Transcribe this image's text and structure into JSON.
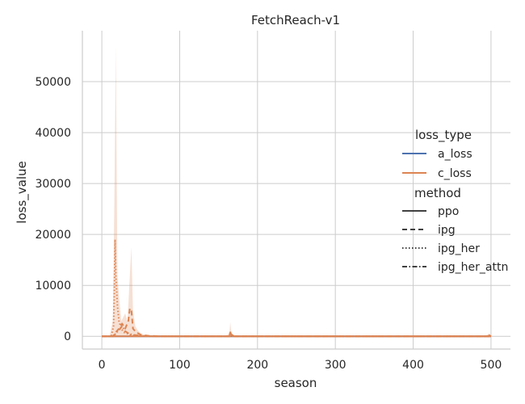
{
  "chart_data": {
    "type": "line",
    "title": "FetchReach-v1",
    "xlabel": "season",
    "ylabel": "loss_value",
    "xlim": [
      -25,
      525
    ],
    "ylim": [
      -2500,
      60000
    ],
    "xticks": [
      0,
      100,
      200,
      300,
      400,
      500
    ],
    "yticks": [
      0,
      10000,
      20000,
      30000,
      40000,
      50000
    ],
    "grid": true,
    "legend_position": "right",
    "legend": {
      "hue_title": "loss_type",
      "hue_entries": [
        {
          "label": "a_loss",
          "color": "#4c72b0"
        },
        {
          "label": "c_loss",
          "color": "#dd8452"
        }
      ],
      "style_title": "method",
      "style_entries": [
        {
          "label": "ppo",
          "dash": "solid"
        },
        {
          "label": "ipg",
          "dash": "dashed"
        },
        {
          "label": "ipg_her",
          "dash": "dotted"
        },
        {
          "label": "ipg_her_attn",
          "dash": "dashdot"
        }
      ]
    },
    "band": {
      "series": "c_loss confidence interval",
      "x": [
        0,
        10,
        14,
        16,
        18,
        20,
        22,
        25,
        30,
        33,
        36,
        38,
        40,
        43,
        46,
        50,
        55,
        60,
        70,
        80,
        100,
        160,
        164,
        165,
        166,
        168,
        172,
        180,
        250,
        350,
        450,
        490,
        495,
        498,
        500
      ],
      "upper": [
        0,
        0,
        3000,
        25000,
        57000,
        12000,
        8000,
        3000,
        4500,
        3000,
        12000,
        17500,
        5000,
        2000,
        1200,
        600,
        300,
        200,
        100,
        50,
        0,
        0,
        800,
        2800,
        1200,
        300,
        0,
        0,
        0,
        0,
        0,
        0,
        300,
        600,
        0
      ],
      "lower": [
        0,
        0,
        0,
        0,
        0,
        0,
        0,
        0,
        0,
        0,
        0,
        0,
        0,
        0,
        0,
        0,
        0,
        0,
        0,
        0,
        0,
        0,
        0,
        0,
        0,
        0,
        0,
        0,
        0,
        0,
        0,
        0,
        0,
        0,
        0
      ]
    },
    "series": [
      {
        "name": "a_loss",
        "method": "ppo",
        "loss_type": "a_loss",
        "x": [
          0,
          100,
          200,
          300,
          400,
          500
        ],
        "y": [
          0,
          0,
          0,
          0,
          0,
          0
        ]
      },
      {
        "name": "c_loss",
        "method": "ppo",
        "loss_type": "c_loss",
        "x": [
          0,
          100,
          164,
          165,
          166,
          170,
          200,
          300,
          400,
          496,
          498,
          500
        ],
        "y": [
          0,
          0,
          0,
          800,
          400,
          0,
          0,
          0,
          0,
          0,
          200,
          0
        ]
      },
      {
        "name": "c_loss",
        "method": "ipg",
        "loss_type": "c_loss",
        "x": [
          0,
          14,
          18,
          22,
          26,
          30,
          34,
          36,
          38,
          40,
          44,
          50,
          60,
          80,
          100,
          200,
          300,
          400,
          500
        ],
        "y": [
          0,
          0,
          800,
          1500,
          2500,
          1500,
          3000,
          5500,
          5000,
          1500,
          800,
          300,
          100,
          0,
          0,
          0,
          0,
          0,
          0
        ]
      },
      {
        "name": "c_loss",
        "method": "ipg_her",
        "loss_type": "c_loss",
        "x": [
          0,
          12,
          15,
          16,
          17,
          18,
          20,
          22,
          25,
          28,
          32,
          36,
          40,
          50,
          60,
          80,
          100,
          200,
          300,
          400,
          500
        ],
        "y": [
          0,
          0,
          2000,
          8000,
          19000,
          12000,
          6000,
          3000,
          1500,
          800,
          600,
          300,
          200,
          100,
          0,
          0,
          0,
          0,
          0,
          0,
          0
        ]
      },
      {
        "name": "c_loss",
        "method": "ipg_her_attn",
        "loss_type": "c_loss",
        "x": [
          0,
          15,
          18,
          22,
          26,
          30,
          35,
          40,
          50,
          70,
          100,
          200,
          300,
          400,
          500
        ],
        "y": [
          0,
          0,
          600,
          1200,
          2000,
          1000,
          500,
          300,
          100,
          0,
          0,
          0,
          0,
          0,
          0
        ]
      }
    ]
  }
}
